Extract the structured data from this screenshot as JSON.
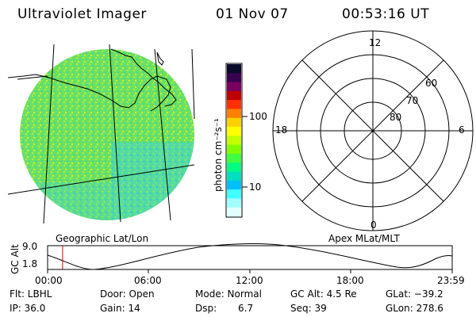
{
  "header": {
    "instrument": "Ultraviolet Imager",
    "date": "01 Nov 07",
    "time": "00:53:16 UT"
  },
  "colorbar": {
    "unit_label": "photon cm⁻²s⁻¹",
    "ticks": [
      "100",
      "10"
    ],
    "colors": [
      "#0a0a2a",
      "#3a0050",
      "#7a0060",
      "#c00000",
      "#ff3000",
      "#ff8000",
      "#ffd000",
      "#ffff00",
      "#c0ff00",
      "#80ff00",
      "#40ff40",
      "#00ff80",
      "#00e0c0",
      "#00c0ff",
      "#40ffff",
      "#a0ffff",
      "#e0ffff"
    ]
  },
  "map_labels": {
    "left": "Geographic Lat/Lon",
    "right": "Apex MLat/MLT"
  },
  "polar": {
    "mlt": {
      "top": "12",
      "left": "18",
      "right": "6",
      "bottom": "0"
    },
    "lat": [
      "60",
      "70",
      "80"
    ]
  },
  "altitude_plot": {
    "ylabel": "GC Alt",
    "yticks": [
      "9.0",
      "1.8"
    ],
    "xticks": [
      "00:00",
      "06:00",
      "12:00",
      "18:00",
      "23:59"
    ],
    "current_time_fraction": 0.037
  },
  "status": {
    "flt": "Flt: LBHL",
    "door": "Door: Open",
    "mode": "Mode: Normal",
    "gc_alt": "GC Alt: 4.5 Re",
    "glat": "GLat: −39.2",
    "ip": "IP: 36.0",
    "gain": "Gain: 14",
    "dsp_label": "Dsp:",
    "dsp_value": "6.7",
    "seq": "Seq: 39",
    "glon": "GLon: 278.6"
  }
}
